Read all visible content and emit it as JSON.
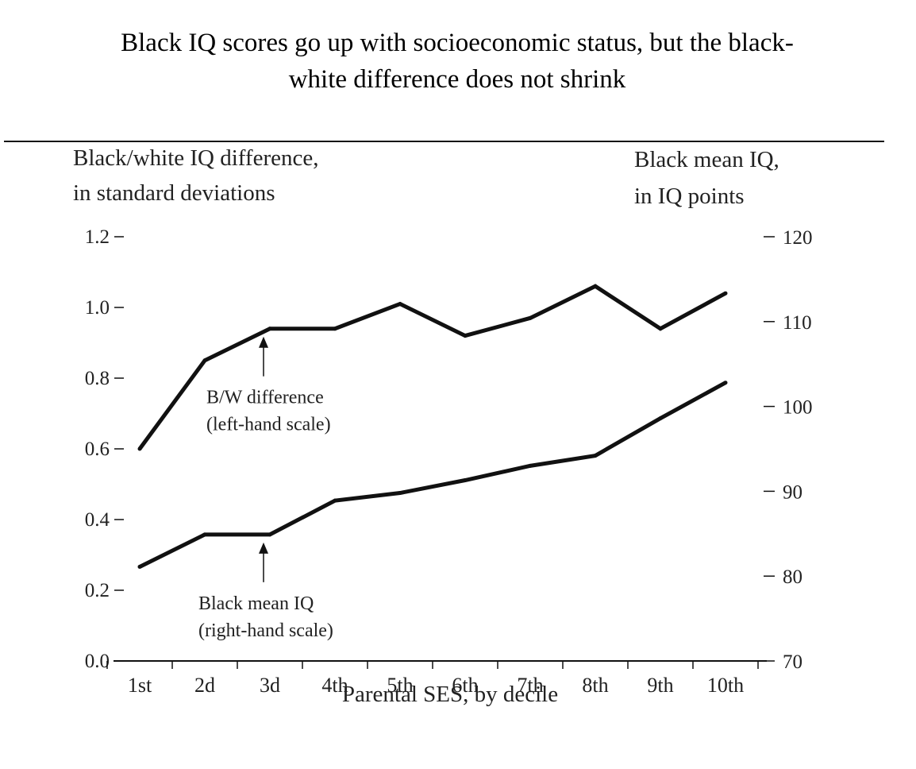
{
  "chart_data": {
    "type": "line",
    "title": "Black IQ scores go up with socioeconomic status, but the black-white difference does not shrink",
    "title_lines": [
      "Black IQ scores go up with socioeconomic status, but the black-",
      "white difference does not shrink"
    ],
    "xlabel": "Parental SES, by decile",
    "ylabel_left": [
      "Black/white IQ difference,",
      "in standard deviations"
    ],
    "ylabel_right": [
      "Black mean IQ,",
      "in IQ points"
    ],
    "categories": [
      "1st",
      "2d",
      "3d",
      "4th",
      "5th",
      "6th",
      "7th",
      "8th",
      "9th",
      "10th"
    ],
    "y_left": {
      "ylim": [
        0.0,
        1.2
      ],
      "ticks": [
        0.0,
        0.2,
        0.4,
        0.6,
        0.8,
        1.0,
        1.2
      ],
      "tick_labels": [
        "0.0",
        "0.2",
        "0.4",
        "0.6",
        "0.8",
        "1.0",
        "1.2"
      ]
    },
    "y_right": {
      "ylim": [
        70,
        120
      ],
      "ticks": [
        70,
        80,
        90,
        100,
        110,
        120
      ],
      "tick_labels": [
        "70",
        "80",
        "90",
        "100",
        "110",
        "120"
      ]
    },
    "series": [
      {
        "name": "B/W difference",
        "axis": "left",
        "values": [
          0.6,
          0.85,
          0.94,
          0.94,
          1.01,
          0.92,
          0.97,
          1.06,
          0.94,
          1.04
        ]
      },
      {
        "name": "Black mean IQ",
        "axis": "right",
        "values": [
          81.1,
          84.9,
          84.9,
          88.9,
          89.8,
          91.3,
          93.0,
          94.2,
          98.6,
          102.8
        ]
      }
    ],
    "annotations": [
      {
        "series": "B/W difference",
        "category": "3d",
        "lines": [
          "B/W difference",
          "(left-hand scale)"
        ]
      },
      {
        "series": "Black mean IQ",
        "category": "3d",
        "lines": [
          "Black mean IQ",
          "(right-hand scale)"
        ]
      }
    ],
    "grid": false,
    "legend": "none"
  }
}
